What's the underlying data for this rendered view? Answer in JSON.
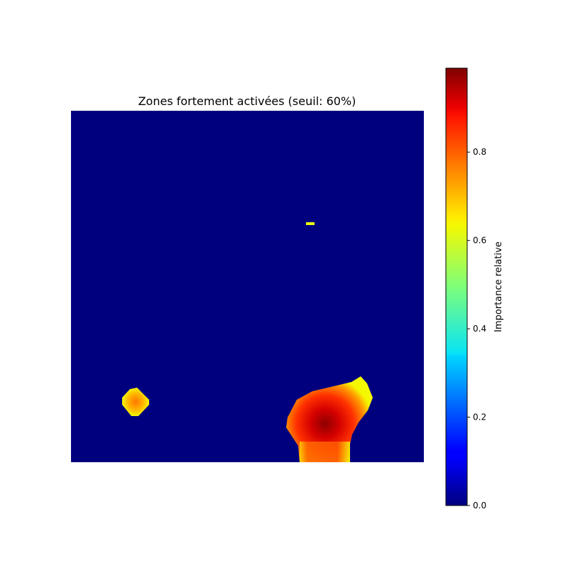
{
  "chart_data": {
    "type": "heatmap",
    "title": "Zones fortement activées (seuil: 60%)",
    "threshold": 0.6,
    "axes_visible": false,
    "colormap": "jet",
    "colorbar": {
      "label": "Importance relative",
      "range": [
        0,
        0.99
      ],
      "ticks": [
        {
          "value": 0.0,
          "label": "0.0"
        },
        {
          "value": 0.2,
          "label": "0.2"
        },
        {
          "value": 0.4,
          "label": "0.4"
        },
        {
          "value": 0.6,
          "label": "0.6"
        },
        {
          "value": 0.8,
          "label": "0.8"
        }
      ]
    },
    "background_value": 0.0,
    "regions": [
      {
        "name": "small-left-blob",
        "center": [
          0.18,
          0.165
        ],
        "rx": 0.035,
        "ry": 0.04,
        "peak_value": 0.76
      },
      {
        "name": "tiny-dash",
        "center": [
          0.68,
          0.68
        ],
        "rx": 0.012,
        "ry": 0.004,
        "peak_value": 0.62
      },
      {
        "name": "large-bottom-blob",
        "center": [
          0.7,
          0.11
        ],
        "rx": 0.11,
        "ry": 0.11,
        "peak_value": 0.99
      }
    ]
  }
}
